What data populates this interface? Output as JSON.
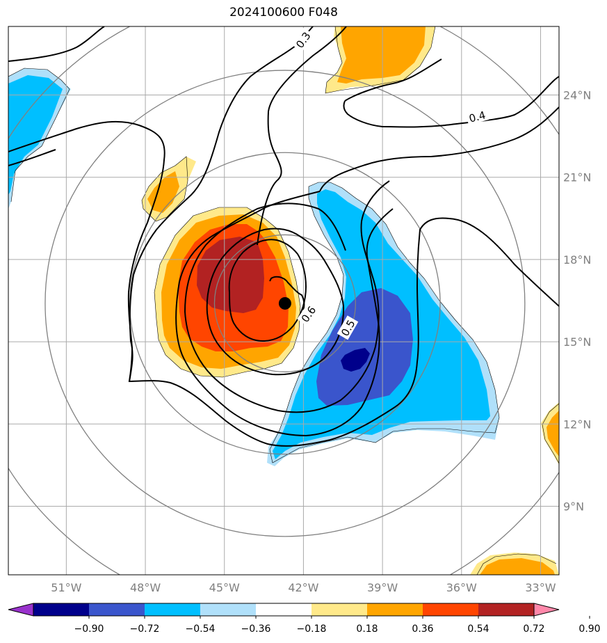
{
  "title": "2024100600 F048",
  "chart_data": {
    "type": "heatmap",
    "title": "2024100600 F048",
    "x_axis": {
      "range": [
        -53.2,
        -32.3
      ],
      "ticks": [
        -51,
        -48,
        -45,
        -42,
        -39,
        -36,
        -33
      ],
      "tick_labels": [
        "51°W",
        "48°W",
        "45°W",
        "42°W",
        "39°W",
        "36°W",
        "33°W"
      ]
    },
    "y_axis": {
      "range": [
        6.5,
        26.5
      ],
      "ticks": [
        9,
        12,
        15,
        18,
        21,
        24
      ],
      "tick_labels": [
        "9°N",
        "12°N",
        "15°N",
        "18°N",
        "21°N",
        "24°N"
      ]
    },
    "grid": true,
    "storm_center": {
      "lon": -42.7,
      "lat": 16.4
    },
    "contour_labels": [
      {
        "text": "0.3",
        "lon": -42.0,
        "lat": 26.0,
        "angle": -55
      },
      {
        "text": "0.4",
        "lon": -35.4,
        "lat": 23.2,
        "angle": -15
      },
      {
        "text": "0.5",
        "lon": -40.3,
        "lat": 15.5,
        "angle": -60
      },
      {
        "text": "0.6",
        "lon": -41.8,
        "lat": 16.0,
        "angle": -55
      }
    ],
    "colorbar": {
      "tick_labels": [
        "−0.90",
        "−0.72",
        "−0.54",
        "−0.36",
        "−0.18",
        "0.18",
        "0.36",
        "0.54",
        "0.72",
        "0.90"
      ],
      "levels": [
        -0.9,
        -0.72,
        -0.54,
        -0.36,
        -0.18,
        0.18,
        0.36,
        0.54,
        0.72,
        0.9
      ],
      "colors": [
        "#9932cc",
        "#00008b",
        "#3a55cc",
        "#00bfff",
        "#b0e0fa",
        "#ffffff",
        "#ffe98a",
        "#ffa500",
        "#ff4500",
        "#b22222",
        "#ff88aa"
      ]
    },
    "range_ring_radii_deg_lat": [
      2.5,
      5.5,
      8.5,
      11.5
    ]
  }
}
